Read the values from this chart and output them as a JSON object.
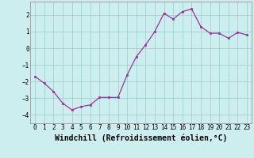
{
  "x": [
    0,
    1,
    2,
    3,
    4,
    5,
    6,
    7,
    8,
    9,
    10,
    11,
    12,
    13,
    14,
    15,
    16,
    17,
    18,
    19,
    20,
    21,
    22,
    23
  ],
  "y": [
    -1.7,
    -2.1,
    -2.6,
    -3.3,
    -3.7,
    -3.5,
    -3.4,
    -2.95,
    -2.95,
    -2.95,
    -1.6,
    -0.5,
    0.2,
    1.0,
    2.1,
    1.75,
    2.2,
    2.35,
    1.3,
    0.9,
    0.9,
    0.6,
    0.95,
    0.8
  ],
  "line_color": "#993399",
  "marker": "s",
  "markersize": 2.0,
  "linewidth": 0.9,
  "background_color": "#cceeee",
  "grid_color": "#99cccc",
  "xlabel": "Windchill (Refroidissement éolien,°C)",
  "ylabel": "",
  "xlim": [
    -0.5,
    23.5
  ],
  "ylim": [
    -4.5,
    2.8
  ],
  "yticks": [
    -4,
    -3,
    -2,
    -1,
    0,
    1,
    2
  ],
  "xtick_labels": [
    "0",
    "1",
    "2",
    "3",
    "4",
    "5",
    "6",
    "7",
    "8",
    "9",
    "10",
    "11",
    "12",
    "13",
    "14",
    "15",
    "16",
    "17",
    "18",
    "19",
    "20",
    "21",
    "22",
    "23"
  ],
  "tick_fontsize": 5.5,
  "xlabel_fontsize": 7.0
}
